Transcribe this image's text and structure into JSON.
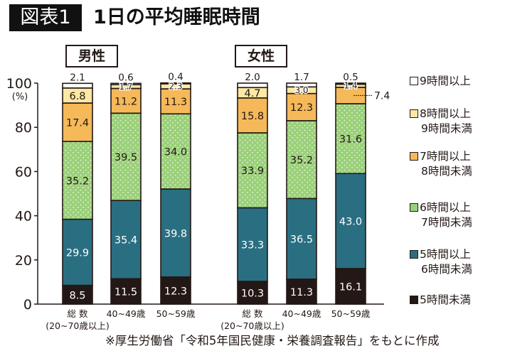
{
  "header": {
    "badge": "図表1",
    "title": "1日の平均睡眠時間"
  },
  "groups": [
    {
      "label": "男性"
    },
    {
      "label": "女性"
    }
  ],
  "legend": [
    {
      "line1": "9時間以上",
      "line2": "",
      "key": "9h_plus"
    },
    {
      "line1": "8時間以上",
      "line2": "9時間未満",
      "key": "8to9"
    },
    {
      "line1": "7時間以上",
      "line2": "8時間未満",
      "key": "7to8"
    },
    {
      "line1": "6時間以上",
      "line2": "7時間未満",
      "key": "6to7"
    },
    {
      "line1": "5時間以上",
      "line2": "6時間未満",
      "key": "5to6"
    },
    {
      "line1": "5時間未満",
      "line2": "",
      "key": "under5"
    }
  ],
  "source": "※厚生労働省「令和5年国民健康・栄養調査報告」をもとに作成",
  "chart_data": {
    "type": "bar",
    "stacked": true,
    "title": "1日の平均睡眠時間",
    "ylabel": "(%)",
    "ylim": [
      0,
      100
    ],
    "yticks": [
      "0",
      "20",
      "40",
      "60",
      "80",
      "100"
    ],
    "grid": false,
    "legend_position": "right",
    "groups": [
      "男性",
      "女性"
    ],
    "categories": [
      {
        "group": "男性",
        "line1": "総 数",
        "line2": "(20~70歳以上)"
      },
      {
        "group": "男性",
        "line1": "40~49歳",
        "line2": ""
      },
      {
        "group": "男性",
        "line1": "50~59歳",
        "line2": ""
      },
      {
        "group": "女性",
        "line1": "総 数",
        "line2": "(20~70歳以上)"
      },
      {
        "group": "女性",
        "line1": "40~49歳",
        "line2": ""
      },
      {
        "group": "女性",
        "line1": "50~59歳",
        "line2": ""
      }
    ],
    "series": [
      {
        "name": "5時間未満",
        "color": "#231815",
        "label_color": "#ffffff",
        "pattern": "solid",
        "values": [
          8.5,
          11.5,
          12.3,
          10.3,
          11.3,
          16.1
        ]
      },
      {
        "name": "5時間以上6時間未満",
        "color": "#2a6f81",
        "label_color": "#ffffff",
        "pattern": "solid",
        "values": [
          29.9,
          35.4,
          39.8,
          33.3,
          36.5,
          43.0
        ]
      },
      {
        "name": "6時間以上7時間未満",
        "color": "#9bd07a",
        "label_color": "#231815",
        "pattern": "dots",
        "values": [
          35.2,
          39.5,
          34.0,
          33.9,
          35.2,
          31.6
        ]
      },
      {
        "name": "7時間以上8時間未満",
        "color": "#f5b95a",
        "label_color": "#231815",
        "pattern": "solid",
        "values": [
          17.4,
          11.2,
          11.3,
          15.8,
          12.3,
          7.4
        ]
      },
      {
        "name": "8時間以上9時間未満",
        "color": "#fde8a4",
        "label_color": "#231815",
        "pattern": "solid",
        "values": [
          6.8,
          1.7,
          2.3,
          4.7,
          3.0,
          1.4
        ]
      },
      {
        "name": "9時間以上",
        "color": "#ffffff",
        "label_color": "#231815",
        "pattern": "solid",
        "values": [
          2.1,
          0.6,
          0.4,
          2.0,
          1.7,
          0.5
        ]
      }
    ],
    "annotations": [
      {
        "category_index": 5,
        "series": "7時間以上8時間未満",
        "text": "7.4",
        "placement": "outside-right-leader"
      }
    ]
  }
}
